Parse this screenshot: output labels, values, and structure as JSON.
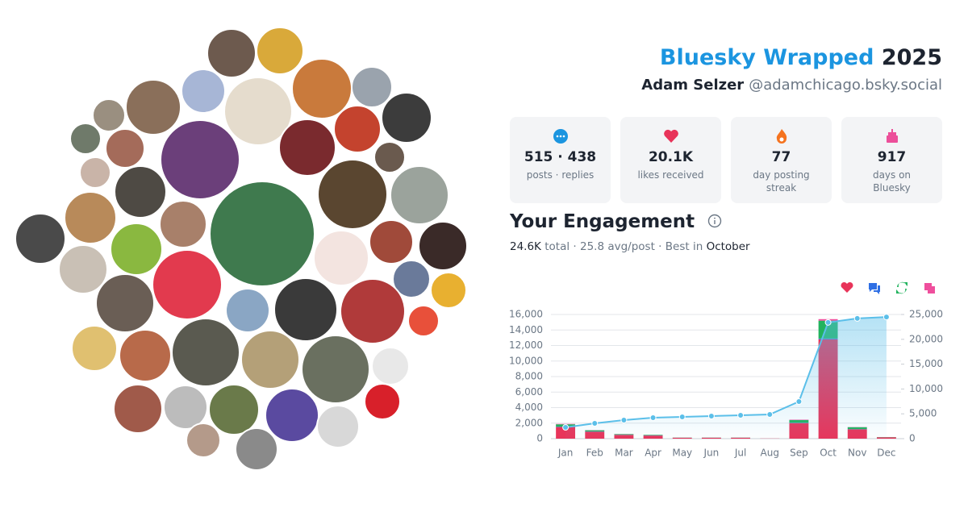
{
  "header": {
    "title": "Bluesky Wrapped",
    "year": "2025",
    "name": "Adam Selzer",
    "handle": "@adamchicago.bsky.social"
  },
  "stats": [
    {
      "value": "515 · 438",
      "label": "posts · replies"
    },
    {
      "value": "20.1K",
      "label": "likes received"
    },
    {
      "value": "77",
      "label": "day posting streak"
    },
    {
      "value": "917",
      "label": "days on Bluesky"
    }
  ],
  "engagement": {
    "title": "Your Engagement",
    "total": "24.6K",
    "total_label": "total",
    "separator": "·",
    "avg": "25.8 avg/post",
    "best_prefix": "Best in",
    "best_month": "October"
  },
  "chart_data": {
    "type": "bar",
    "stacked": true,
    "grid": true,
    "categories": [
      "Jan",
      "Feb",
      "Mar",
      "Apr",
      "May",
      "Jun",
      "Jul",
      "Aug",
      "Sep",
      "Oct",
      "Nov",
      "Dec"
    ],
    "ylim": [
      0,
      16000
    ],
    "yticks": [
      0,
      {
        "value": 2000,
        "label": "2,000"
      },
      {
        "value": 4000,
        "label": "4,000"
      },
      {
        "value": 6000,
        "label": "6,000"
      },
      {
        "value": 8000,
        "label": "8,000"
      },
      {
        "value": 10000,
        "label": "10,000"
      },
      {
        "value": 12000,
        "label": "12,000"
      },
      {
        "value": 14000,
        "label": "14,000"
      },
      {
        "value": 16000,
        "label": "16,000"
      }
    ],
    "y2lim": [
      0,
      25000
    ],
    "y2ticks": [
      0,
      {
        "value": 5000,
        "label": "5,000"
      },
      {
        "value": 10000,
        "label": "10,000"
      },
      {
        "value": 15000,
        "label": "15,000"
      },
      {
        "value": 20000,
        "label": "20,000"
      },
      {
        "value": 25000,
        "label": "25,000"
      }
    ],
    "series": [
      {
        "color": "#e8345a",
        "values": [
          1500,
          900,
          480,
          400,
          120,
          120,
          120,
          20,
          2000,
          12800,
          1200,
          170
        ]
      },
      {
        "color": "#2f6fe4",
        "values": [
          50,
          30,
          20,
          20,
          5,
          5,
          5,
          0,
          50,
          100,
          30,
          5
        ]
      },
      {
        "color": "#22b35e",
        "values": [
          300,
          150,
          80,
          70,
          20,
          20,
          20,
          0,
          350,
          2300,
          250,
          30
        ]
      },
      {
        "color": "#ef4f9d",
        "values": [
          50,
          20,
          20,
          10,
          5,
          5,
          5,
          0,
          50,
          200,
          20,
          5
        ]
      },
      {
        "type": "line",
        "axis": "y2",
        "color": "#5bbfe9",
        "values": [
          2270,
          3080,
          3730,
          4220,
          4380,
          4550,
          4710,
          4870,
          7470,
          23400,
          24200,
          24500
        ]
      }
    ]
  }
}
